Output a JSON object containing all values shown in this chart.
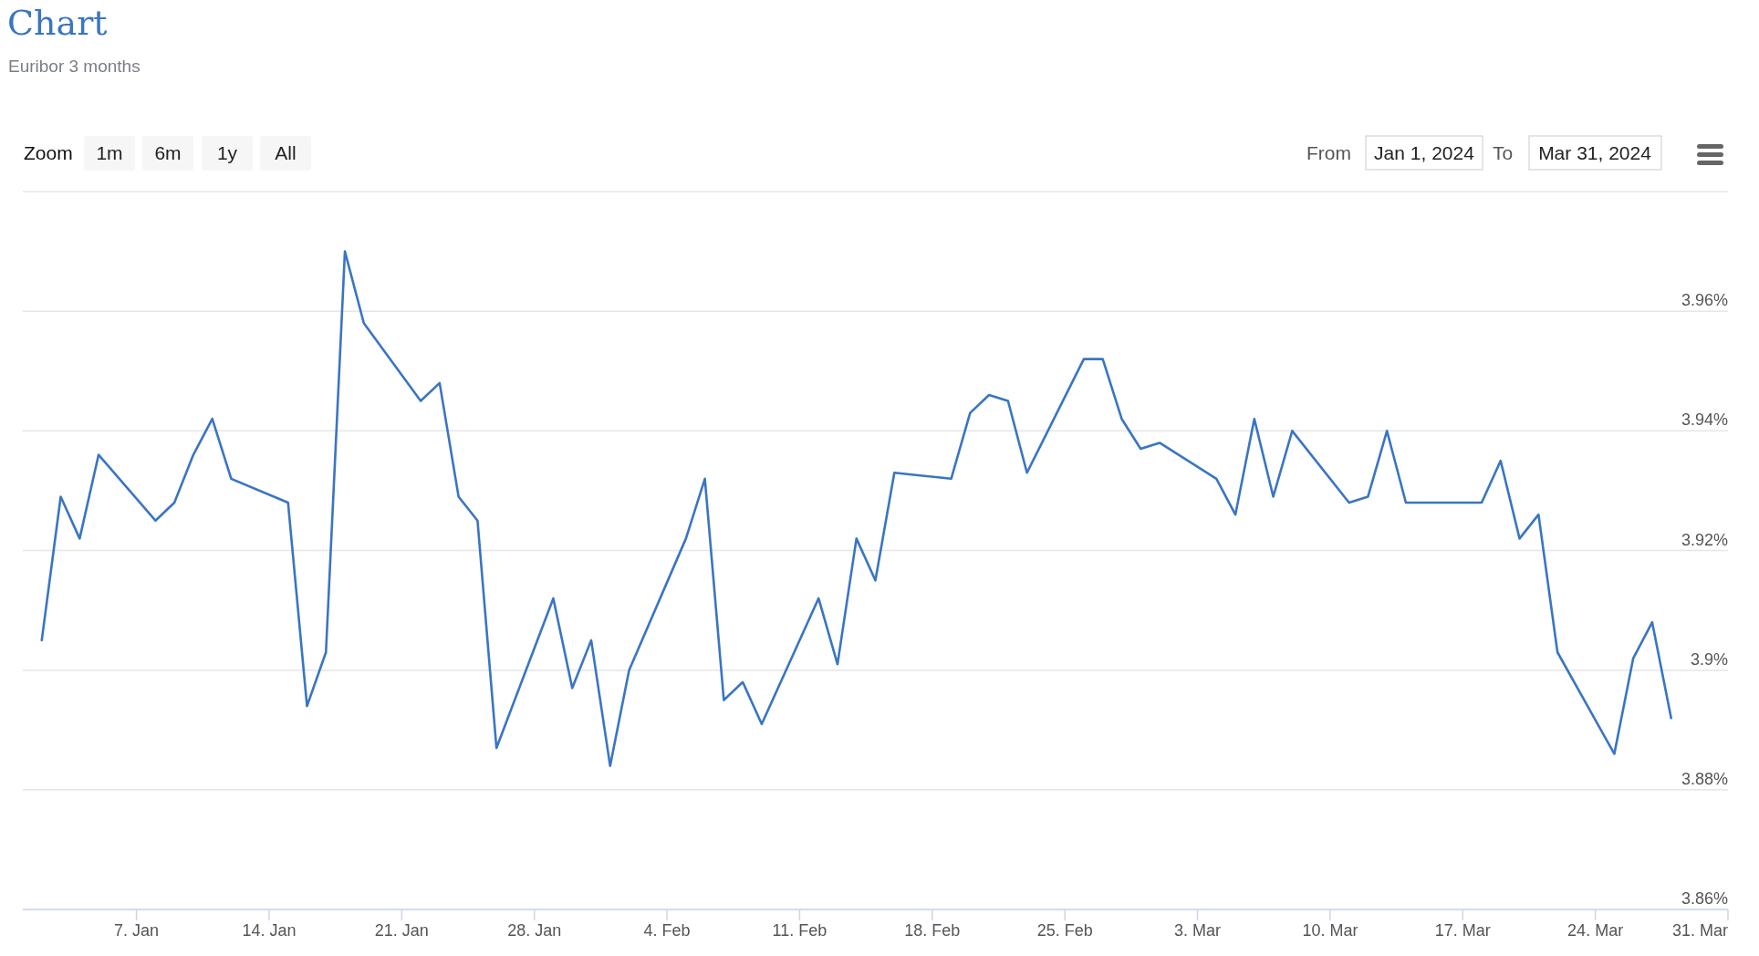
{
  "chart_data": {
    "type": "line",
    "title": "Chart",
    "subtitle": "Euribor 3 months",
    "annotations": [
      "Zoom",
      "1m",
      "6m",
      "1y",
      "All",
      "From",
      "Jan 1, 2024",
      "To",
      "Mar 31, 2024"
    ],
    "x": [
      "2024-01-02",
      "2024-01-03",
      "2024-01-04",
      "2024-01-05",
      "2024-01-08",
      "2024-01-09",
      "2024-01-10",
      "2024-01-11",
      "2024-01-12",
      "2024-01-15",
      "2024-01-16",
      "2024-01-17",
      "2024-01-18",
      "2024-01-19",
      "2024-01-22",
      "2024-01-23",
      "2024-01-24",
      "2024-01-25",
      "2024-01-26",
      "2024-01-29",
      "2024-01-30",
      "2024-01-31",
      "2024-02-01",
      "2024-02-02",
      "2024-02-05",
      "2024-02-06",
      "2024-02-07",
      "2024-02-08",
      "2024-02-09",
      "2024-02-12",
      "2024-02-13",
      "2024-02-14",
      "2024-02-15",
      "2024-02-16",
      "2024-02-19",
      "2024-02-20",
      "2024-02-21",
      "2024-02-22",
      "2024-02-23",
      "2024-02-26",
      "2024-02-27",
      "2024-02-28",
      "2024-02-29",
      "2024-03-01",
      "2024-03-04",
      "2024-03-05",
      "2024-03-06",
      "2024-03-07",
      "2024-03-08",
      "2024-03-11",
      "2024-03-12",
      "2024-03-13",
      "2024-03-14",
      "2024-03-15",
      "2024-03-18",
      "2024-03-19",
      "2024-03-20",
      "2024-03-21",
      "2024-03-22",
      "2024-03-25",
      "2024-03-26",
      "2024-03-27",
      "2024-03-28"
    ],
    "series": [
      {
        "color": "#3a75c4",
        "values": [
          3.905,
          3.929,
          3.922,
          3.936,
          3.925,
          3.928,
          3.936,
          3.942,
          3.932,
          3.928,
          3.894,
          3.903,
          3.97,
          3.958,
          3.945,
          3.948,
          3.929,
          3.925,
          3.887,
          3.912,
          3.897,
          3.905,
          3.884,
          3.9,
          3.922,
          3.932,
          3.895,
          3.898,
          3.891,
          3.912,
          3.901,
          3.922,
          3.915,
          3.933,
          3.932,
          3.943,
          3.946,
          3.945,
          3.933,
          3.952,
          3.952,
          3.942,
          3.937,
          3.938,
          3.932,
          3.926,
          3.942,
          3.929,
          3.94,
          3.928,
          3.929,
          3.94,
          3.928,
          3.928,
          3.928,
          3.935,
          3.922,
          3.926,
          3.903,
          3.886,
          3.902,
          3.908,
          3.892
        ]
      }
    ],
    "xlim": [
      "2024-01-01",
      "2024-03-31"
    ],
    "xticks": [
      {
        "value": "2024-01-07",
        "label": "7. Jan"
      },
      {
        "value": "2024-01-14",
        "label": "14. Jan"
      },
      {
        "value": "2024-01-21",
        "label": "21. Jan"
      },
      {
        "value": "2024-01-28",
        "label": "28. Jan"
      },
      {
        "value": "2024-02-04",
        "label": "4. Feb"
      },
      {
        "value": "2024-02-11",
        "label": "11. Feb"
      },
      {
        "value": "2024-02-18",
        "label": "18. Feb"
      },
      {
        "value": "2024-02-25",
        "label": "25. Feb"
      },
      {
        "value": "2024-03-03",
        "label": "3. Mar"
      },
      {
        "value": "2024-03-10",
        "label": "10. Mar"
      },
      {
        "value": "2024-03-17",
        "label": "17. Mar"
      },
      {
        "value": "2024-03-24",
        "label": "24. Mar"
      },
      {
        "value": "2024-03-31",
        "label": "31. Mar"
      }
    ],
    "ylim": [
      3.86,
      3.98
    ],
    "yticks": [
      {
        "value": 3.86,
        "label": "3.86%"
      },
      {
        "value": 3.88,
        "label": "3.88%"
      },
      {
        "value": 3.9,
        "label": "3.9%"
      },
      {
        "value": 3.92,
        "label": "3.92%"
      },
      {
        "value": 3.94,
        "label": "3.94%"
      },
      {
        "value": 3.96,
        "label": "3.96%"
      },
      {
        "value": 3.98,
        "label": null
      }
    ],
    "grid": "y",
    "marker": "none",
    "line_style": "solid"
  }
}
